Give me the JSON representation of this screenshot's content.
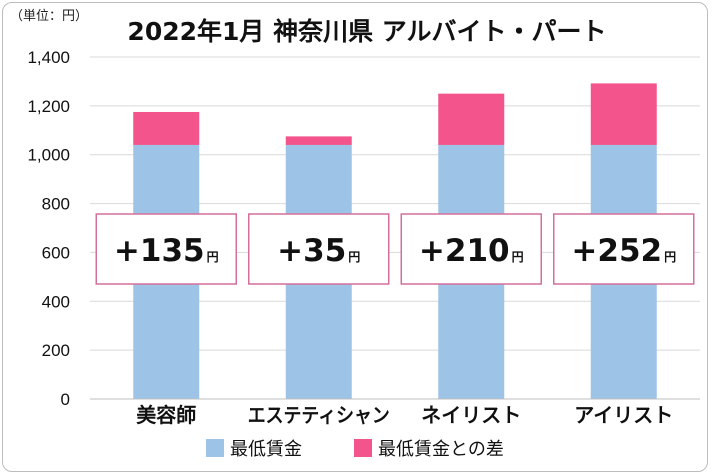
{
  "unit_label": "（単位：円）",
  "chart_data": {
    "type": "bar",
    "stacked": true,
    "title": "2022年1月 神奈川県 アルバイト・パート",
    "categories": [
      "美容師",
      "エステティシャン",
      "ネイリスト",
      "アイリスト"
    ],
    "series": [
      {
        "name": "最低賃金",
        "values": [
          1040,
          1040,
          1040,
          1040
        ],
        "color": "#9dc3e6"
      },
      {
        "name": "最低賃金との差",
        "values": [
          135,
          35,
          210,
          252
        ],
        "color": "#f2548b"
      }
    ],
    "diff_labels": [
      {
        "prefix": "+",
        "value": "135",
        "unit": "円"
      },
      {
        "prefix": "+",
        "value": "35",
        "unit": "円"
      },
      {
        "prefix": "+",
        "value": "210",
        "unit": "円"
      },
      {
        "prefix": "+",
        "value": "252",
        "unit": "円"
      }
    ],
    "ylim": [
      0,
      1400
    ],
    "yticks": [
      "0",
      "200",
      "400",
      "600",
      "800",
      "1,000",
      "1,200",
      "1,400"
    ],
    "ytick_values": [
      0,
      200,
      400,
      600,
      800,
      1000,
      1200,
      1400
    ],
    "grid": true,
    "legend": "bottom",
    "gridline_color": "#d9d9d9",
    "label_box_border_color": "#d36f9c"
  }
}
